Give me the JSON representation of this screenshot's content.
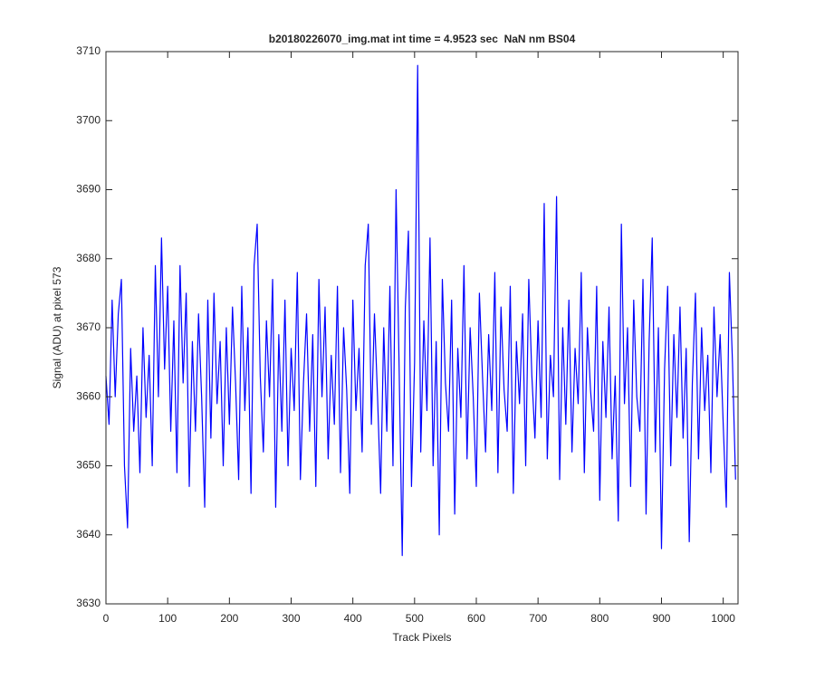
{
  "chart_data": {
    "type": "line",
    "title": "b20180226070_img.mat int time = 4.9523 sec  NaN nm BS04",
    "x_label": "Track Pixels",
    "y_label": "Signal (ADU) at pixel 573",
    "xlim": [
      0,
      1024
    ],
    "ylim": [
      3630,
      3710
    ],
    "xticks": [
      0,
      100,
      200,
      300,
      400,
      500,
      600,
      700,
      800,
      900,
      1000
    ],
    "yticks": [
      3630,
      3640,
      3650,
      3660,
      3670,
      3680,
      3690,
      3700,
      3710
    ],
    "series": [
      {
        "color": "#0000ff",
        "x": [
          0,
          5,
          10,
          15,
          20,
          25,
          30,
          35,
          40,
          45,
          50,
          55,
          60,
          65,
          70,
          75,
          80,
          85,
          90,
          95,
          100,
          105,
          110,
          115,
          120,
          125,
          130,
          135,
          140,
          145,
          150,
          155,
          160,
          165,
          170,
          175,
          180,
          185,
          190,
          195,
          200,
          205,
          210,
          215,
          220,
          225,
          230,
          235,
          240,
          245,
          250,
          255,
          260,
          265,
          270,
          275,
          280,
          285,
          290,
          295,
          300,
          305,
          310,
          315,
          320,
          325,
          330,
          335,
          340,
          345,
          350,
          355,
          360,
          365,
          370,
          375,
          380,
          385,
          390,
          395,
          400,
          405,
          410,
          415,
          420,
          425,
          430,
          435,
          440,
          445,
          450,
          455,
          460,
          465,
          470,
          475,
          480,
          485,
          490,
          495,
          500,
          505,
          510,
          515,
          520,
          525,
          530,
          535,
          540,
          545,
          550,
          555,
          560,
          565,
          570,
          575,
          580,
          585,
          590,
          595,
          600,
          605,
          610,
          615,
          620,
          625,
          630,
          635,
          640,
          645,
          650,
          655,
          660,
          665,
          670,
          675,
          680,
          685,
          690,
          695,
          700,
          705,
          710,
          715,
          720,
          725,
          730,
          735,
          740,
          745,
          750,
          755,
          760,
          765,
          770,
          775,
          780,
          785,
          790,
          795,
          800,
          805,
          810,
          815,
          820,
          825,
          830,
          835,
          840,
          845,
          850,
          855,
          860,
          865,
          870,
          875,
          880,
          885,
          890,
          895,
          900,
          905,
          910,
          915,
          920,
          925,
          930,
          935,
          940,
          945,
          950,
          955,
          960,
          965,
          970,
          975,
          980,
          985,
          990,
          995,
          1000,
          1005,
          1010,
          1015,
          1020
        ],
        "values": [
          3663,
          3656,
          3674,
          3660,
          3672,
          3677,
          3650,
          3641,
          3667,
          3655,
          3663,
          3649,
          3670,
          3657,
          3666,
          3650,
          3679,
          3660,
          3683,
          3664,
          3676,
          3655,
          3671,
          3649,
          3679,
          3662,
          3675,
          3647,
          3668,
          3655,
          3672,
          3660,
          3644,
          3674,
          3654,
          3675,
          3659,
          3668,
          3650,
          3670,
          3656,
          3673,
          3662,
          3648,
          3676,
          3658,
          3670,
          3646,
          3679,
          3685,
          3663,
          3652,
          3671,
          3660,
          3677,
          3644,
          3669,
          3655,
          3674,
          3650,
          3667,
          3658,
          3678,
          3648,
          3662,
          3672,
          3655,
          3669,
          3647,
          3677,
          3660,
          3673,
          3651,
          3666,
          3656,
          3676,
          3649,
          3670,
          3661,
          3646,
          3674,
          3658,
          3667,
          3652,
          3679,
          3685,
          3656,
          3672,
          3660,
          3646,
          3670,
          3655,
          3676,
          3650,
          3690,
          3664,
          3637,
          3673,
          3684,
          3647,
          3665,
          3708,
          3652,
          3671,
          3658,
          3683,
          3650,
          3668,
          3640,
          3677,
          3662,
          3655,
          3674,
          3643,
          3667,
          3657,
          3679,
          3651,
          3670,
          3660,
          3647,
          3675,
          3663,
          3652,
          3669,
          3658,
          3678,
          3649,
          3673,
          3661,
          3655,
          3676,
          3646,
          3668,
          3659,
          3672,
          3650,
          3677,
          3663,
          3654,
          3671,
          3657,
          3688,
          3651,
          3666,
          3660,
          3689,
          3648,
          3670,
          3656,
          3674,
          3652,
          3667,
          3659,
          3678,
          3649,
          3670,
          3661,
          3655,
          3676,
          3645,
          3668,
          3657,
          3673,
          3651,
          3663,
          3642,
          3685,
          3659,
          3670,
          3647,
          3674,
          3660,
          3655,
          3677,
          3643,
          3668,
          3683,
          3652,
          3670,
          3638,
          3664,
          3676,
          3650,
          3669,
          3657,
          3673,
          3654,
          3667,
          3639,
          3662,
          3675,
          3651,
          3670,
          3658,
          3666,
          3649,
          3673,
          3660,
          3669,
          3656,
          3644,
          3678,
          3665,
          3648
        ]
      }
    ]
  }
}
